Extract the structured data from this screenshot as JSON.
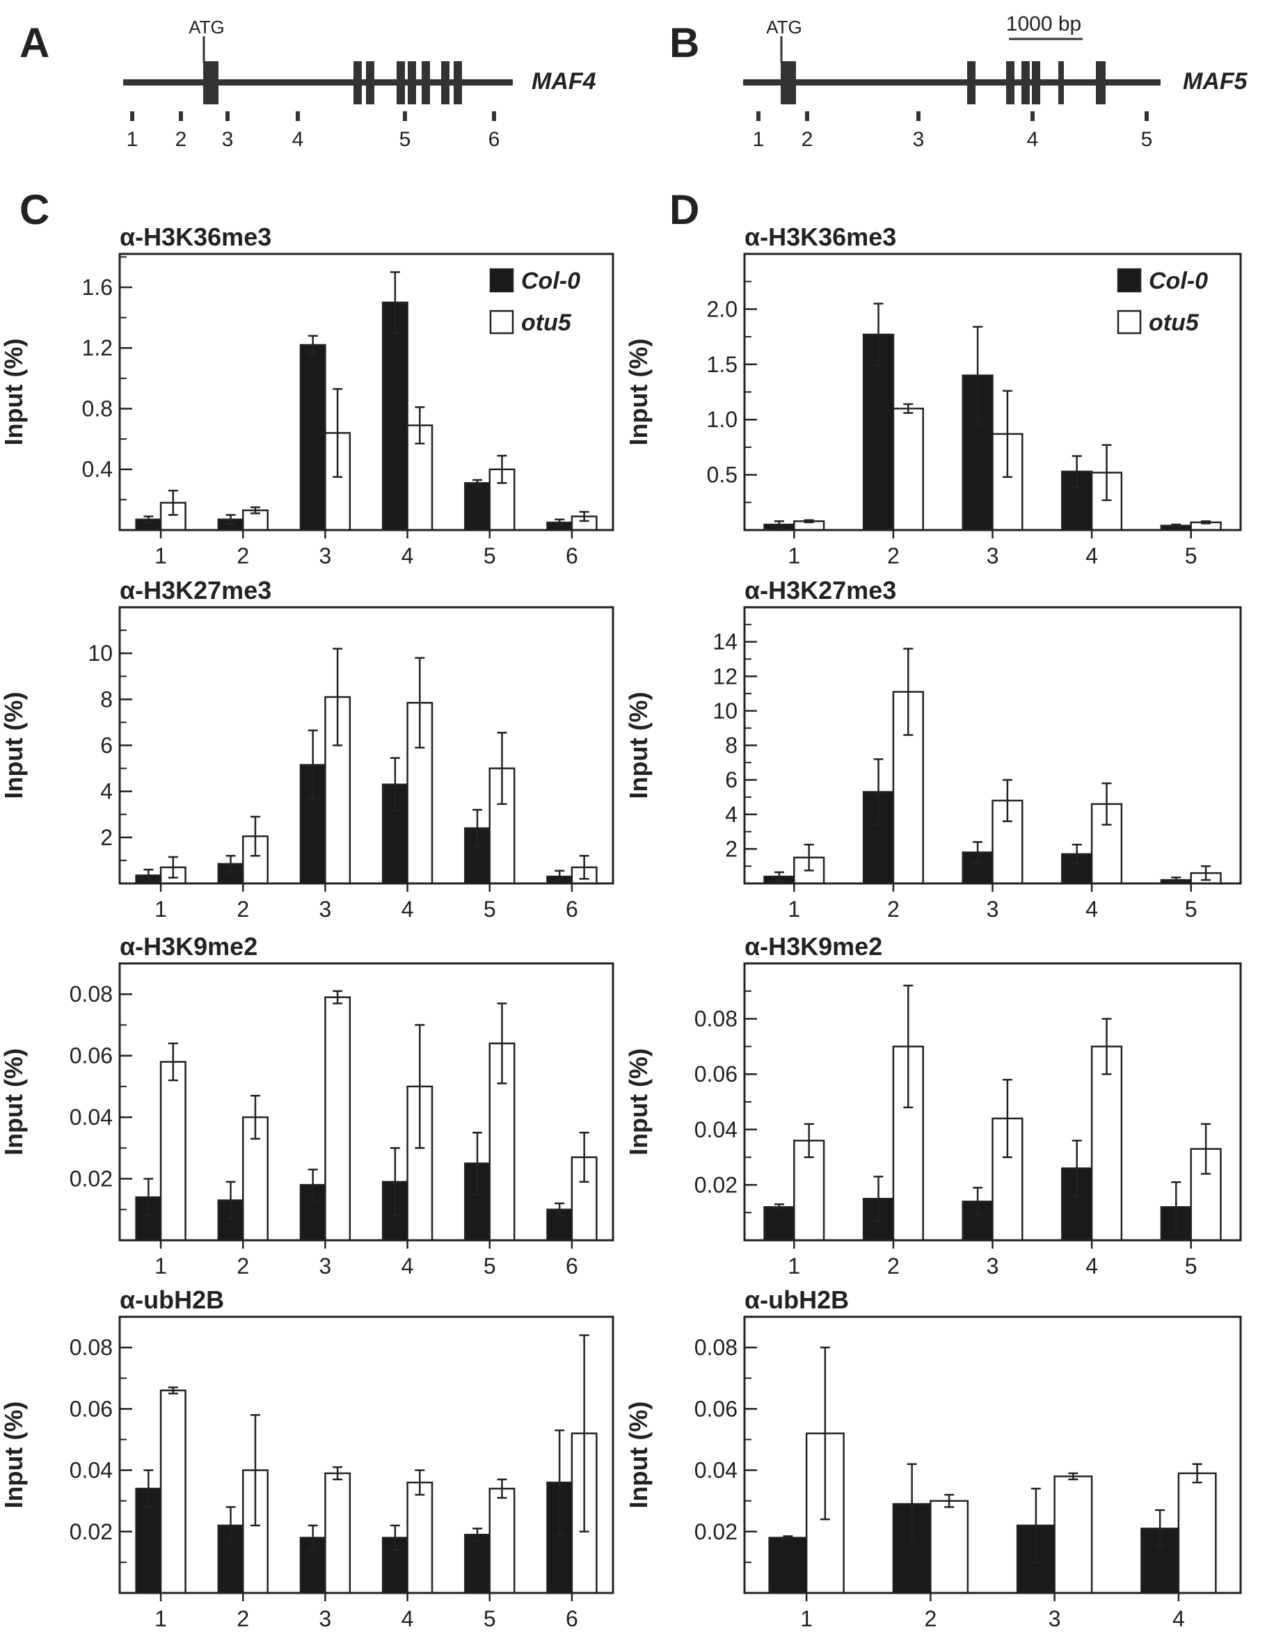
{
  "panel_labels": [
    "A",
    "B",
    "C",
    "D"
  ],
  "genes": [
    {
      "name": "MAF4",
      "atg": "ATG",
      "sites": [
        "1",
        "2",
        "3",
        "4",
        "5",
        "6"
      ],
      "scale": ""
    },
    {
      "name": "MAF5",
      "atg": "ATG",
      "sites": [
        "1",
        "2",
        "3",
        "4",
        "5"
      ],
      "scale": "1000 bp"
    }
  ],
  "legend": {
    "series": [
      "Col-0",
      "otu5"
    ]
  },
  "colors": {
    "col0": "#1a1a1a",
    "otu5": "#ffffff",
    "axis": "#222222"
  },
  "chart_data": [
    {
      "type": "bar",
      "panel": "C",
      "title": "α-H3K36me3",
      "ylabel": "Input (%)",
      "categories": [
        "1",
        "2",
        "3",
        "4",
        "5",
        "6"
      ],
      "ylim": [
        0,
        1.82
      ],
      "yticks": [
        0.4,
        0.8,
        1.2,
        1.6
      ],
      "ytick_labels": [
        "0.4",
        "0.8",
        "1.2",
        "1.6"
      ],
      "minor_step": 0.2,
      "legend": true,
      "series": [
        {
          "name": "Col-0",
          "values": [
            0.07,
            0.07,
            1.22,
            1.5,
            0.31,
            0.05
          ],
          "errors": [
            0.02,
            0.03,
            0.06,
            0.2,
            0.02,
            0.02
          ]
        },
        {
          "name": "otu5",
          "values": [
            0.18,
            0.13,
            0.64,
            0.69,
            0.4,
            0.09
          ],
          "errors": [
            0.08,
            0.02,
            0.29,
            0.12,
            0.09,
            0.03
          ]
        }
      ]
    },
    {
      "type": "bar",
      "panel": "D",
      "title": "α-H3K36me3",
      "ylabel": "Input (%)",
      "categories": [
        "1",
        "2",
        "3",
        "4",
        "5"
      ],
      "ylim": [
        0,
        2.5
      ],
      "yticks": [
        0.5,
        1.0,
        1.5,
        2.0
      ],
      "ytick_labels": [
        "0.5",
        "1.0",
        "1.5",
        "2.0"
      ],
      "minor_step": 0.25,
      "legend": true,
      "series": [
        {
          "name": "Col-0",
          "values": [
            0.05,
            1.77,
            1.4,
            0.53,
            0.04
          ],
          "errors": [
            0.03,
            0.28,
            0.44,
            0.14,
            0.01
          ]
        },
        {
          "name": "otu5",
          "values": [
            0.08,
            1.1,
            0.87,
            0.52,
            0.07
          ],
          "errors": [
            0.01,
            0.04,
            0.39,
            0.25,
            0.01
          ]
        }
      ]
    },
    {
      "type": "bar",
      "panel": "C",
      "title": "α-H3K27me3",
      "ylabel": "Input (%)",
      "categories": [
        "1",
        "2",
        "3",
        "4",
        "5",
        "6"
      ],
      "ylim": [
        0,
        12
      ],
      "yticks": [
        2,
        4,
        6,
        8,
        10
      ],
      "ytick_labels": [
        "2",
        "4",
        "6",
        "8",
        "10"
      ],
      "minor_step": 1,
      "legend": false,
      "series": [
        {
          "name": "Col-0",
          "values": [
            0.35,
            0.85,
            5.15,
            4.3,
            2.4,
            0.3
          ],
          "errors": [
            0.25,
            0.35,
            1.5,
            1.15,
            0.8,
            0.25
          ]
        },
        {
          "name": "otu5",
          "values": [
            0.7,
            2.05,
            8.1,
            7.85,
            5.0,
            0.7
          ],
          "errors": [
            0.45,
            0.85,
            2.1,
            1.95,
            1.55,
            0.5
          ]
        }
      ]
    },
    {
      "type": "bar",
      "panel": "D",
      "title": "α-H3K27me3",
      "ylabel": "Input (%)",
      "categories": [
        "1",
        "2",
        "3",
        "4",
        "5"
      ],
      "ylim": [
        0,
        16
      ],
      "yticks": [
        2,
        4,
        6,
        8,
        10,
        12,
        14
      ],
      "ytick_labels": [
        "2",
        "4",
        "6",
        "8",
        "10",
        "12",
        "14"
      ],
      "minor_step": 1,
      "legend": false,
      "series": [
        {
          "name": "Col-0",
          "values": [
            0.4,
            5.3,
            1.8,
            1.7,
            0.2
          ],
          "errors": [
            0.25,
            1.9,
            0.6,
            0.55,
            0.15
          ]
        },
        {
          "name": "otu5",
          "values": [
            1.5,
            11.1,
            4.8,
            4.6,
            0.6
          ],
          "errors": [
            0.75,
            2.5,
            1.2,
            1.2,
            0.4
          ]
        }
      ]
    },
    {
      "type": "bar",
      "panel": "C",
      "title": "α-H3K9me2",
      "ylabel": "Input (%)",
      "categories": [
        "1",
        "2",
        "3",
        "4",
        "5",
        "6"
      ],
      "ylim": [
        0,
        0.09
      ],
      "yticks": [
        0.02,
        0.04,
        0.06,
        0.08
      ],
      "ytick_labels": [
        "0.02",
        "0.04",
        "0.06",
        "0.08"
      ],
      "minor_step": 0.01,
      "legend": false,
      "series": [
        {
          "name": "Col-0",
          "values": [
            0.014,
            0.013,
            0.018,
            0.019,
            0.025,
            0.01
          ],
          "errors": [
            0.006,
            0.006,
            0.005,
            0.011,
            0.01,
            0.002
          ]
        },
        {
          "name": "otu5",
          "values": [
            0.058,
            0.04,
            0.079,
            0.05,
            0.064,
            0.027
          ],
          "errors": [
            0.006,
            0.007,
            0.002,
            0.02,
            0.013,
            0.008
          ]
        }
      ]
    },
    {
      "type": "bar",
      "panel": "D",
      "title": "α-H3K9me2",
      "ylabel": "Input (%)",
      "categories": [
        "1",
        "2",
        "3",
        "4",
        "5"
      ],
      "ylim": [
        0,
        0.1
      ],
      "yticks": [
        0.02,
        0.04,
        0.06,
        0.08
      ],
      "ytick_labels": [
        "0.02",
        "0.04",
        "0.06",
        "0.08"
      ],
      "minor_step": 0.01,
      "legend": false,
      "series": [
        {
          "name": "Col-0",
          "values": [
            0.012,
            0.015,
            0.014,
            0.026,
            0.012
          ],
          "errors": [
            0.001,
            0.008,
            0.005,
            0.01,
            0.009
          ]
        },
        {
          "name": "otu5",
          "values": [
            0.036,
            0.07,
            0.044,
            0.07,
            0.033
          ],
          "errors": [
            0.006,
            0.022,
            0.014,
            0.01,
            0.009
          ]
        }
      ]
    },
    {
      "type": "bar",
      "panel": "C",
      "title": "α-ubH2B",
      "ylabel": "Input (%)",
      "categories": [
        "1",
        "2",
        "3",
        "4",
        "5",
        "6"
      ],
      "ylim": [
        0,
        0.09
      ],
      "yticks": [
        0.02,
        0.04,
        0.06,
        0.08
      ],
      "ytick_labels": [
        "0.02",
        "0.04",
        "0.06",
        "0.08"
      ],
      "minor_step": 0.01,
      "legend": false,
      "series": [
        {
          "name": "Col-0",
          "values": [
            0.034,
            0.022,
            0.018,
            0.018,
            0.019,
            0.036
          ],
          "errors": [
            0.006,
            0.006,
            0.004,
            0.004,
            0.002,
            0.017
          ]
        },
        {
          "name": "otu5",
          "values": [
            0.066,
            0.04,
            0.039,
            0.036,
            0.034,
            0.052
          ],
          "errors": [
            0.001,
            0.018,
            0.002,
            0.004,
            0.003,
            0.032
          ]
        }
      ]
    },
    {
      "type": "bar",
      "panel": "D",
      "title": "α-ubH2B",
      "ylabel": "Input (%)",
      "categories": [
        "1",
        "2",
        "3",
        "4"
      ],
      "ylim": [
        0,
        0.09
      ],
      "yticks": [
        0.02,
        0.04,
        0.06,
        0.08
      ],
      "ytick_labels": [
        "0.02",
        "0.04",
        "0.06",
        "0.08"
      ],
      "minor_step": 0.01,
      "legend": false,
      "series": [
        {
          "name": "Col-0",
          "values": [
            0.018,
            0.029,
            0.022,
            0.021
          ],
          "errors": [
            0.0005,
            0.013,
            0.012,
            0.006
          ]
        },
        {
          "name": "otu5",
          "values": [
            0.052,
            0.03,
            0.038,
            0.039
          ],
          "errors": [
            0.028,
            0.002,
            0.001,
            0.003
          ]
        }
      ]
    }
  ]
}
